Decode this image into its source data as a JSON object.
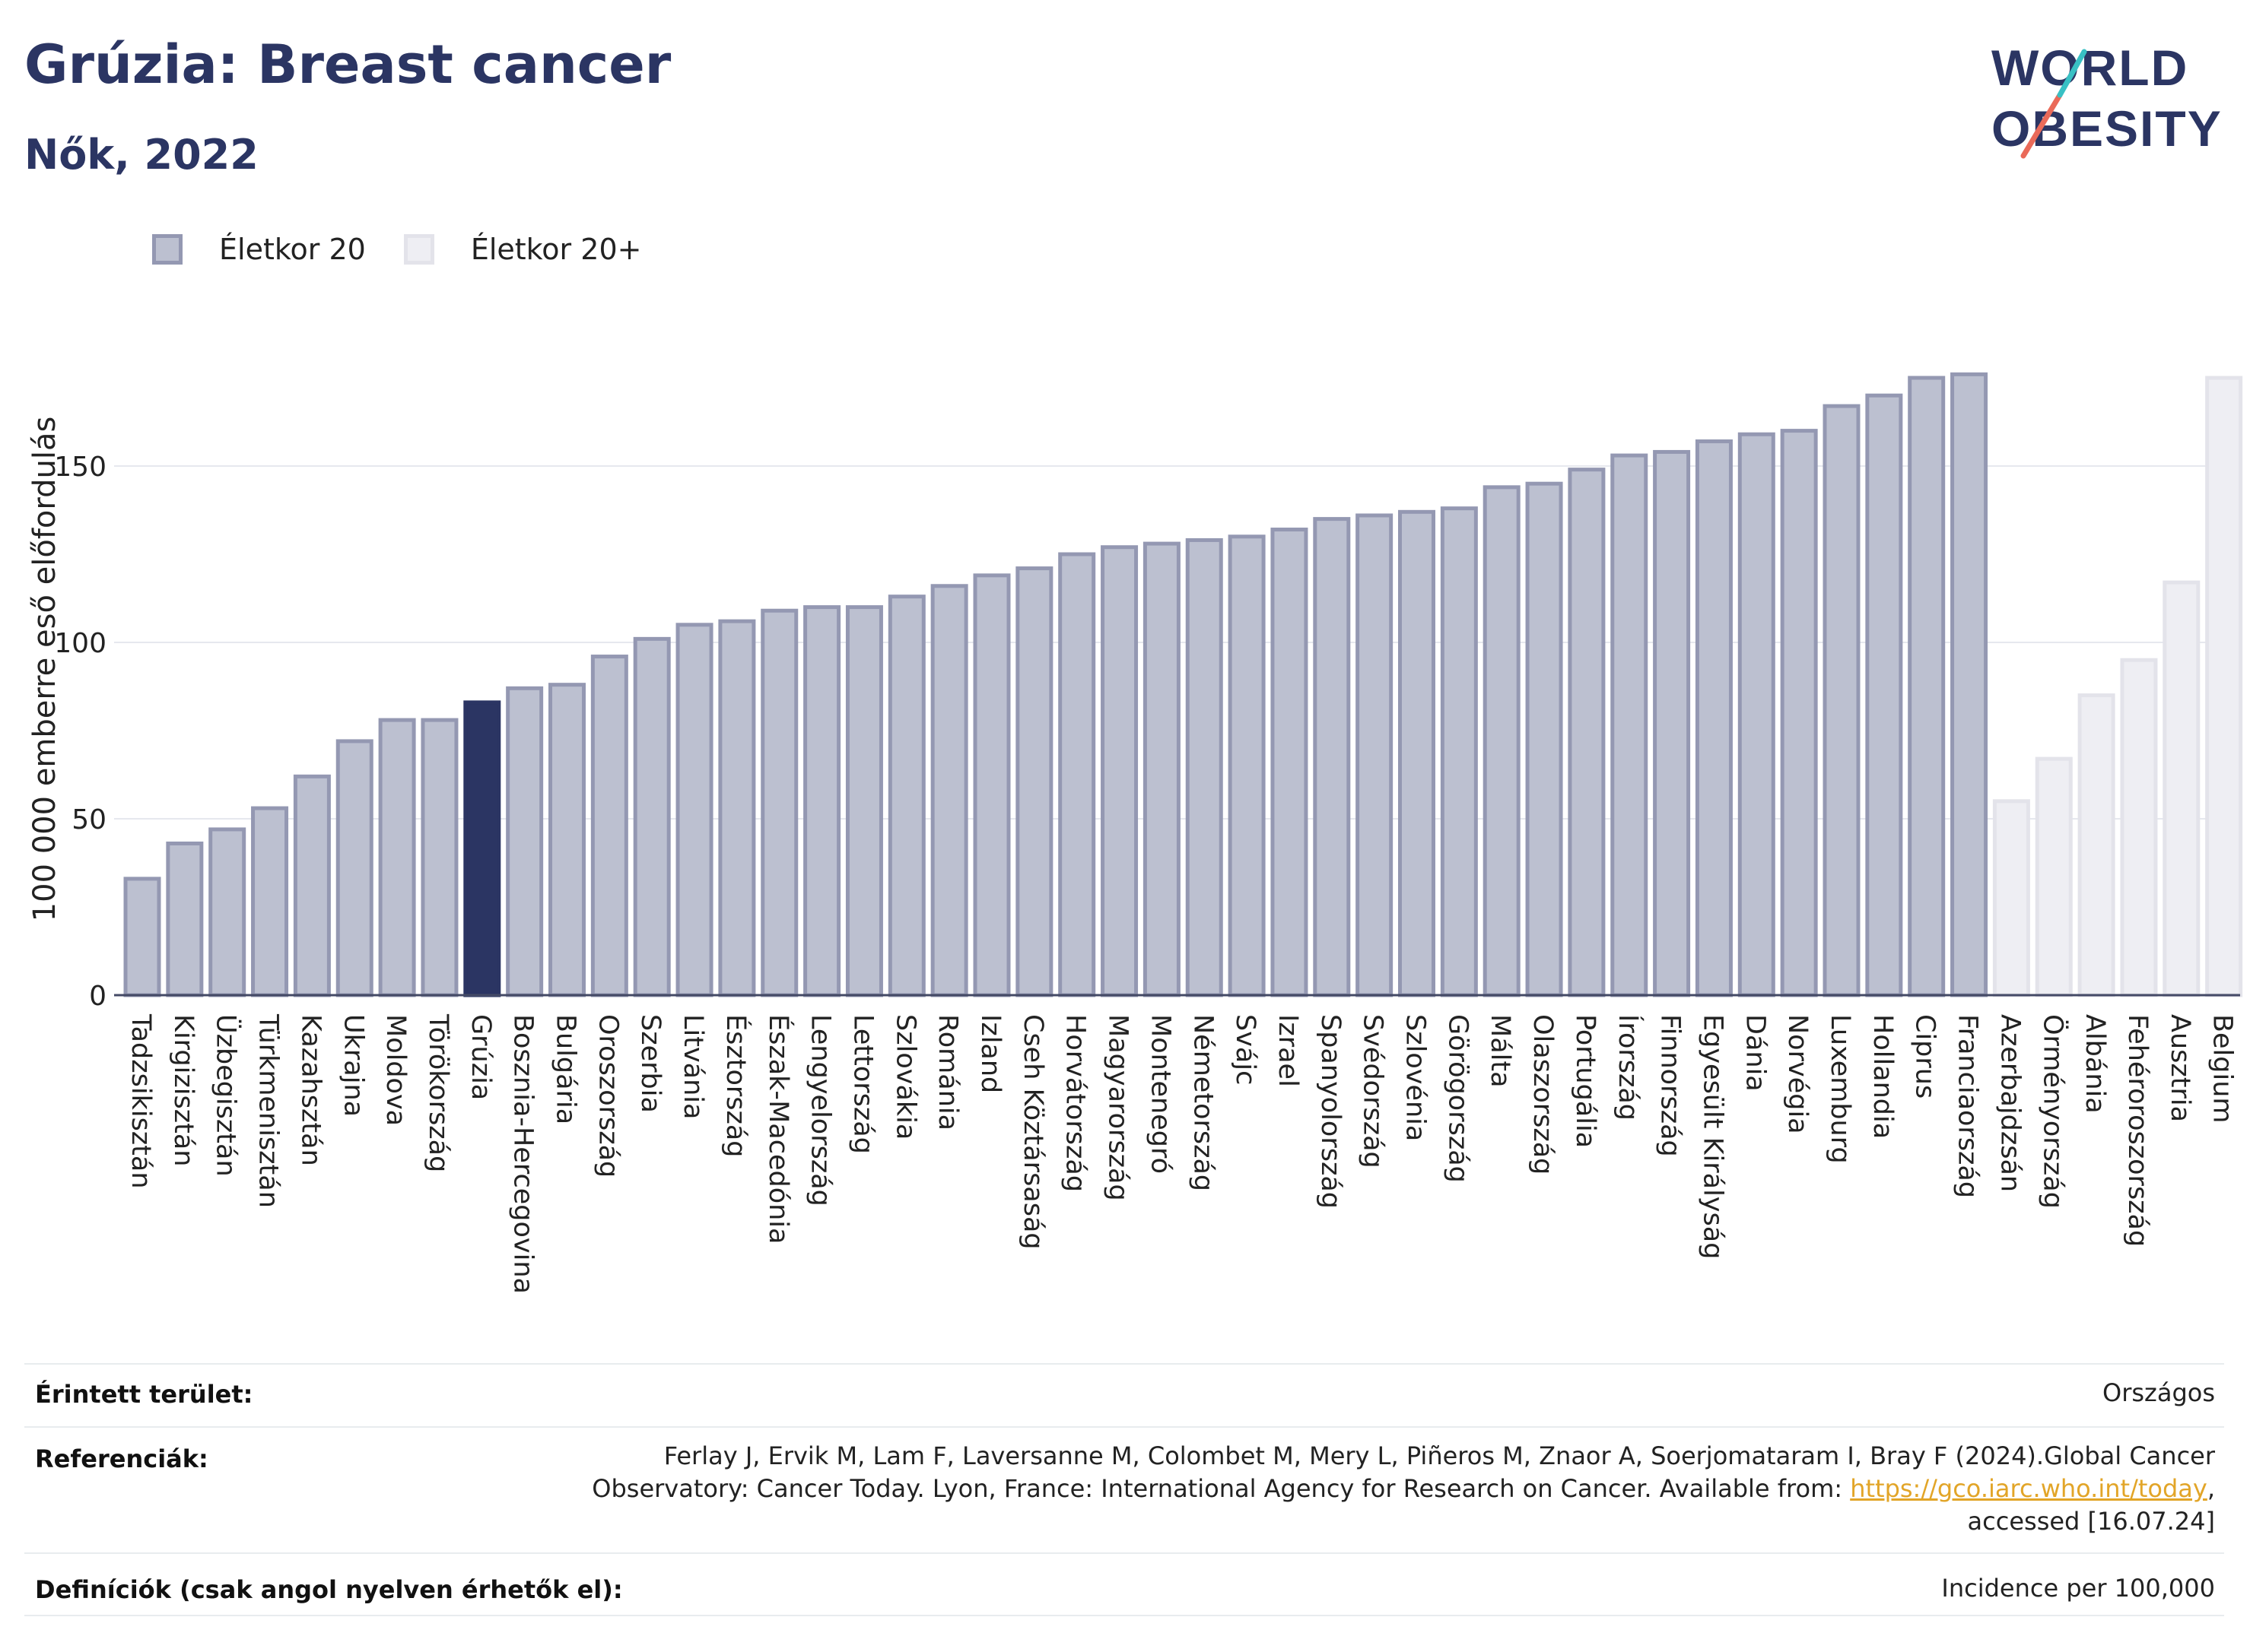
{
  "header": {
    "title": "Grúzia: Breast cancer",
    "subtitle": "Nők, 2022"
  },
  "logo": {
    "line1": "WORLD",
    "line2": "OBESITY"
  },
  "legend": [
    {
      "label": "Életkor 20",
      "color": "#bcc0d0"
    },
    {
      "label": "Életkor 20+",
      "color": "#eeeef3"
    }
  ],
  "colors": {
    "primary_bar": "#bcc0d0",
    "primary_bar_border": "#9498b2",
    "secondary_bar": "#eeeef3",
    "secondary_bar_border": "#e3e3ea",
    "highlight_bar": "#2b3563",
    "title": "#2b3563",
    "logo_accent_1": "#39c0c4",
    "logo_accent_2": "#ea6a59"
  },
  "chart_data": {
    "type": "bar",
    "ylabel": "100 000 emberre eső előfordulás",
    "xlabel": "",
    "ylim": [
      0,
      185
    ],
    "yticks": [
      0,
      50,
      100,
      150
    ],
    "grid": true,
    "highlight": "Grúzia",
    "series": [
      {
        "name": "Életkor 20",
        "categories": [
          "Tadzsikisztán",
          "Kirgizisztán",
          "Üzbegisztán",
          "Türkmenisztán",
          "Kazahsztán",
          "Ukrajna",
          "Moldova",
          "Törökország",
          "Grúzia",
          "Bosznia-Hercegovina",
          "Bulgária",
          "Oroszország",
          "Szerbia",
          "Litvánia",
          "Észtország",
          "Észak-Macedónia",
          "Lengyelország",
          "Lettország",
          "Szlovákia",
          "Románia",
          "Izland",
          "Cseh Köztársaság",
          "Horvátország",
          "Magyarország",
          "Montenegró",
          "Németország",
          "Svájc",
          "Izrael",
          "Spanyolország",
          "Svédország",
          "Szlovénia",
          "Görögország",
          "Málta",
          "Olaszország",
          "Portugália",
          "Írország",
          "Finnország",
          "Egyesült Királyság",
          "Dánia",
          "Norvégia",
          "Luxemburg",
          "Hollandia",
          "Ciprus",
          "Franciaország"
        ],
        "values": [
          33,
          43,
          47,
          53,
          62,
          72,
          78,
          78,
          83,
          87,
          88,
          96,
          101,
          105,
          106,
          109,
          110,
          110,
          113,
          116,
          119,
          121,
          125,
          127,
          128,
          129,
          130,
          132,
          135,
          136,
          137,
          138,
          144,
          145,
          149,
          153,
          154,
          157,
          159,
          160,
          167,
          170,
          175,
          176
        ]
      },
      {
        "name": "Életkor 20+",
        "categories": [
          "Azerbajdzsán",
          "Örményország",
          "Albánia",
          "Fehéroroszország",
          "Ausztria",
          "Belgium"
        ],
        "values": [
          55,
          67,
          85,
          95,
          117,
          175
        ]
      }
    ]
  },
  "info": {
    "area_key": "Érintett terület:",
    "area_value": "Országos",
    "refs_key": "Referenciák:",
    "refs_line1": "Ferlay J, Ervik M, Lam F, Laversanne M, Colombet M, Mery L, Piñeros M, Znaor A, Soerjomataram I, Bray F (2024).Global Cancer",
    "refs_line2": "Observatory: Cancer Today. Lyon, France: International Agency for Research on Cancer. Available from: ",
    "refs_link": "https://gco.iarc.who.int/today",
    "refs_line2_end": ",",
    "refs_line3": "accessed [16.07.24]",
    "defs_key": "Definíciók (csak angol nyelven érhetők el):",
    "defs_value": "Incidence per 100,000"
  }
}
